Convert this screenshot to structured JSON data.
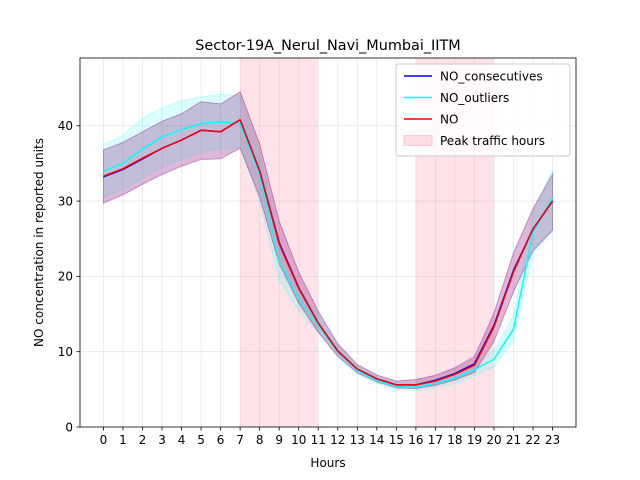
{
  "chart_data": {
    "type": "line",
    "title": "Sector-19A_Nerul_Navi_Mumbai_IITM",
    "xlabel": "Hours",
    "ylabel": "NO concentration in reported units",
    "x": [
      0,
      1,
      2,
      3,
      4,
      5,
      6,
      7,
      8,
      9,
      10,
      11,
      12,
      13,
      14,
      15,
      16,
      17,
      18,
      19,
      20,
      21,
      22,
      23
    ],
    "xlim": [
      -1.2,
      24.2
    ],
    "ylim": [
      0,
      49
    ],
    "yticks": [
      0,
      10,
      20,
      30,
      40
    ],
    "grid": true,
    "legend_position": "upper right",
    "series": [
      {
        "name": "NO_consecutives",
        "color": "#0000ff",
        "values": [
          33.2,
          34.2,
          35.6,
          37.0,
          38.1,
          39.4,
          39.2,
          40.8,
          34.0,
          24.5,
          18.5,
          13.8,
          10.1,
          7.7,
          6.4,
          5.6,
          5.6,
          6.2,
          7.1,
          8.4,
          13.5,
          20.8,
          26.3,
          30.0
        ],
        "band_lower": [
          29.7,
          30.8,
          32.2,
          33.5,
          34.6,
          35.5,
          35.6,
          37.0,
          30.5,
          21.8,
          16.5,
          12.6,
          9.4,
          7.2,
          6.0,
          5.2,
          5.1,
          5.6,
          6.3,
          7.3,
          11.5,
          18.0,
          23.4,
          26.1
        ],
        "band_upper": [
          36.8,
          37.8,
          39.2,
          40.6,
          41.6,
          43.2,
          42.9,
          44.5,
          37.6,
          27.4,
          20.6,
          15.4,
          11.1,
          8.3,
          6.9,
          6.1,
          6.3,
          6.9,
          7.9,
          9.4,
          15.2,
          23.2,
          29.0,
          33.6
        ]
      },
      {
        "name": "NO_outliers",
        "color": "#00ffff",
        "values": [
          34.0,
          35.0,
          36.9,
          38.5,
          39.5,
          40.3,
          40.5,
          40.3,
          33.5,
          22.0,
          17.0,
          13.5,
          10.0,
          7.5,
          6.2,
          5.4,
          5.3,
          5.8,
          6.5,
          7.6,
          9.0,
          13.0,
          25.8,
          30.5
        ],
        "band_lower": [
          30.5,
          31.5,
          33.0,
          34.5,
          35.5,
          36.5,
          37.0,
          37.0,
          30.0,
          19.5,
          15.5,
          12.5,
          9.3,
          7.0,
          5.8,
          5.0,
          4.8,
          5.2,
          5.8,
          6.8,
          8.0,
          11.5,
          23.0,
          26.0
        ],
        "band_upper": [
          37.5,
          38.7,
          41.0,
          42.4,
          43.3,
          43.8,
          44.2,
          44.0,
          36.5,
          24.5,
          18.5,
          14.8,
          10.8,
          8.1,
          6.7,
          5.9,
          5.9,
          6.4,
          7.2,
          8.4,
          10.2,
          14.8,
          28.5,
          34.2
        ]
      },
      {
        "name": "NO",
        "color": "#ff0000",
        "values": [
          33.3,
          34.3,
          35.7,
          37.0,
          38.1,
          39.4,
          39.2,
          40.8,
          34.0,
          24.3,
          18.4,
          13.8,
          10.1,
          7.7,
          6.4,
          5.6,
          5.6,
          6.1,
          7.0,
          8.2,
          13.3,
          20.6,
          26.3,
          30.0
        ],
        "band_lower": [
          29.8,
          30.9,
          32.3,
          33.6,
          34.7,
          35.6,
          35.6,
          37.1,
          30.6,
          21.6,
          16.4,
          12.6,
          9.4,
          7.2,
          6.0,
          5.2,
          5.1,
          5.5,
          6.2,
          7.2,
          11.3,
          17.9,
          23.4,
          26.2
        ],
        "band_upper": [
          36.8,
          37.8,
          39.2,
          40.6,
          41.6,
          43.2,
          42.9,
          44.5,
          37.6,
          27.2,
          20.5,
          15.3,
          11.0,
          8.3,
          6.9,
          6.1,
          6.3,
          6.8,
          7.8,
          9.2,
          15.0,
          23.0,
          29.0,
          33.6
        ]
      }
    ],
    "shaded_regions": [
      {
        "name": "Peak traffic hours",
        "x_start": 7,
        "x_end": 11,
        "color": "#ffc0cb"
      },
      {
        "name": "Peak traffic hours",
        "x_start": 16,
        "x_end": 20,
        "color": "#ffc0cb"
      }
    ],
    "legend": [
      "NO_consecutives",
      "NO_outliers",
      "NO",
      "Peak traffic hours"
    ]
  }
}
